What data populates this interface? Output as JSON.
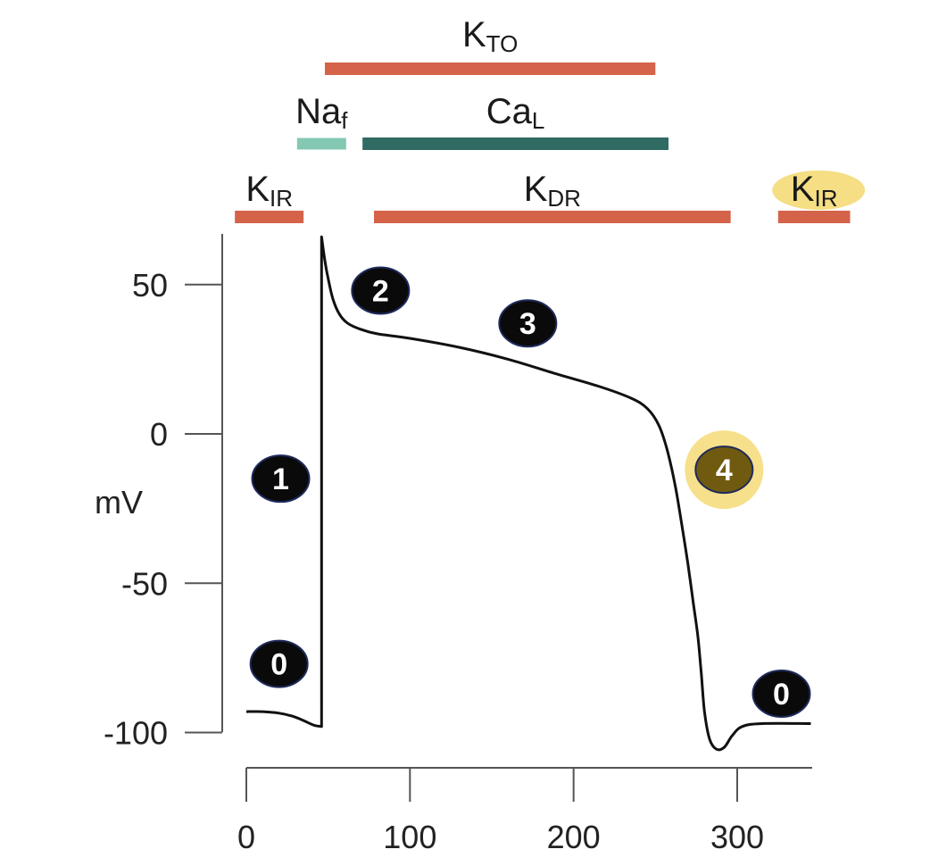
{
  "chart_data": {
    "type": "line",
    "title": "",
    "xlabel": "",
    "ylabel": "mV",
    "xlim": [
      0,
      345
    ],
    "ylim": [
      -110,
      68
    ],
    "x_ticks": [
      0,
      100,
      200,
      300
    ],
    "y_ticks": [
      50,
      0,
      -50,
      -100
    ],
    "x_tick_labels": [
      "0",
      "100",
      "200",
      "300"
    ],
    "y_tick_labels": [
      "50",
      "0",
      "-50",
      "-100"
    ],
    "series": [
      {
        "color": "#111111",
        "points": [
          [
            0,
            -93
          ],
          [
            10,
            -93
          ],
          [
            20,
            -93.5
          ],
          [
            28,
            -94.5
          ],
          [
            35,
            -96
          ],
          [
            41,
            -97.5
          ],
          [
            46,
            -98
          ],
          [
            46,
            66
          ],
          [
            48,
            58
          ],
          [
            50,
            52
          ],
          [
            53,
            45
          ],
          [
            57,
            40
          ],
          [
            62,
            37
          ],
          [
            70,
            35
          ],
          [
            80,
            33.5
          ],
          [
            100,
            32
          ],
          [
            130,
            29
          ],
          [
            160,
            25
          ],
          [
            190,
            20
          ],
          [
            215,
            16
          ],
          [
            235,
            12
          ],
          [
            245,
            8.5
          ],
          [
            252,
            3
          ],
          [
            257,
            -5
          ],
          [
            262,
            -17
          ],
          [
            266,
            -30
          ],
          [
            270,
            -44
          ],
          [
            273,
            -56
          ],
          [
            276,
            -68
          ],
          [
            278,
            -80
          ],
          [
            280,
            -93
          ],
          [
            283,
            -102
          ],
          [
            287,
            -105.5
          ],
          [
            292,
            -105
          ],
          [
            297,
            -101
          ],
          [
            303,
            -98
          ],
          [
            315,
            -97
          ],
          [
            345,
            -97
          ]
        ]
      }
    ],
    "channels": [
      {
        "label": "K",
        "sub": "TO",
        "x_start": 48,
        "x_end": 250,
        "row": "top",
        "color": "#d4634a"
      },
      {
        "label": "Na",
        "sub": "f",
        "x_start": 31,
        "x_end": 61,
        "row": "second",
        "color": "#84c8b4"
      },
      {
        "label": "Ca",
        "sub": "L",
        "x_start": 71,
        "x_end": 258,
        "row": "second",
        "color": "#2f6b62"
      },
      {
        "label": "K",
        "sub": "IR",
        "x_start": -7,
        "x_end": 35,
        "row": "third",
        "color": "#d4634a"
      },
      {
        "label": "K",
        "sub": "DR",
        "x_start": 78,
        "x_end": 296,
        "row": "third",
        "color": "#d4634a"
      },
      {
        "label": "K",
        "sub": "IR",
        "x_start": 325,
        "x_end": 369,
        "row": "third",
        "color": "#d4634a",
        "highlighted": true
      }
    ],
    "phases": [
      {
        "label": "1",
        "x": 21,
        "y": -15
      },
      {
        "label": "2",
        "x": 82,
        "y": 48
      },
      {
        "label": "3",
        "x": 172,
        "y": 37
      },
      {
        "label": "4",
        "x": 292,
        "y": -12,
        "highlighted": true
      },
      {
        "label": "0",
        "x": 20,
        "y": -77
      },
      {
        "label": "0",
        "x": 327,
        "y": -87
      }
    ],
    "highlight_color": "#f2d35a",
    "grid": false,
    "legend": "none"
  }
}
